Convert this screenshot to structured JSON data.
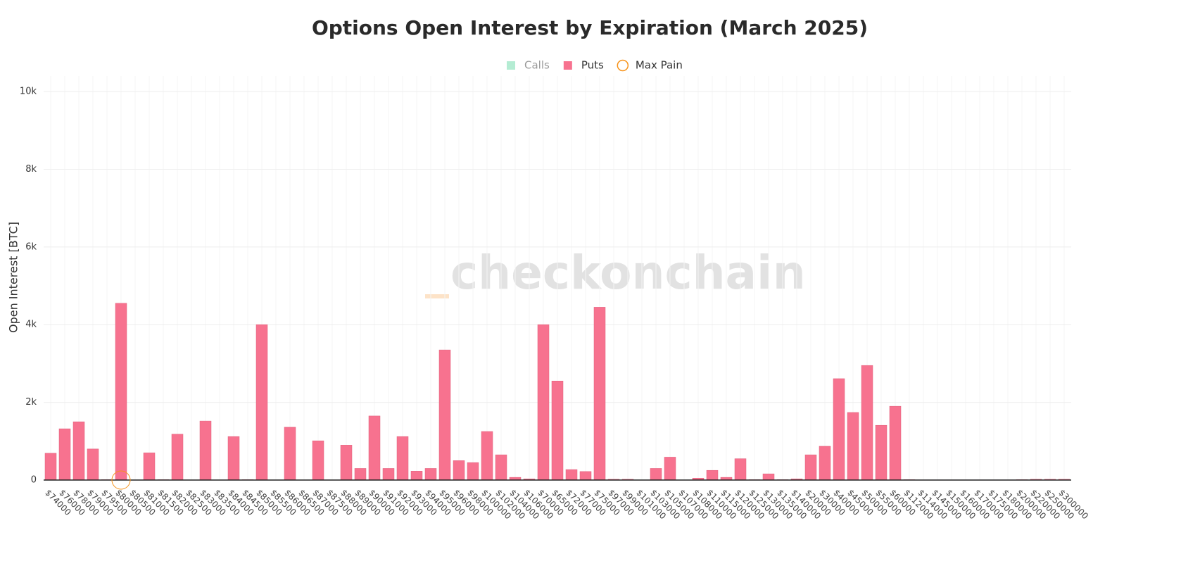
{
  "chart_data": {
    "type": "bar",
    "title": "Options Open Interest by Expiration (March 2025)",
    "y_label": "Open Interest [BTC]",
    "watermark": "checkonchain",
    "categories": [
      "$74000",
      "$76000",
      "$78000",
      "$79000",
      "$79500",
      "$80000",
      "$80500",
      "$81000",
      "$81500",
      "$82000",
      "$82500",
      "$83000",
      "$83500",
      "$84000",
      "$84500",
      "$85000",
      "$85500",
      "$86000",
      "$86500",
      "$87000",
      "$87500",
      "$88000",
      "$89000",
      "$90000",
      "$91000",
      "$92000",
      "$93000",
      "$94000",
      "$95000",
      "$96000",
      "$98000",
      "$100000",
      "$102000",
      "$104000",
      "$106000",
      "$70000",
      "$65000",
      "$72000",
      "$77000",
      "$75000",
      "$97000",
      "$99000",
      "$101000",
      "$103000",
      "$105000",
      "$107000",
      "$108000",
      "$110000",
      "$115000",
      "$120000",
      "$125000",
      "$130000",
      "$135000",
      "$140000",
      "$20000",
      "$30000",
      "$40000",
      "$45000",
      "$50000",
      "$55000",
      "$60000",
      "$112000",
      "$114000",
      "$145000",
      "$150000",
      "$160000",
      "$170000",
      "$175000",
      "$180000",
      "$200000",
      "$220000",
      "$250000",
      "$300000"
    ],
    "series": [
      {
        "name": "Calls",
        "color": "#b4ecd3",
        "visible": false
      },
      {
        "name": "Puts",
        "color": "#f7728f",
        "visible": true,
        "values": [
          690,
          1320,
          1500,
          800,
          10,
          4550,
          0,
          700,
          10,
          1180,
          0,
          1520,
          0,
          1120,
          10,
          4000,
          0,
          1360,
          0,
          1010,
          0,
          900,
          300,
          1650,
          300,
          1120,
          230,
          300,
          3350,
          500,
          450,
          1250,
          650,
          70,
          30,
          4000,
          2550,
          270,
          220,
          4450,
          20,
          20,
          0,
          300,
          590,
          0,
          50,
          250,
          70,
          550,
          10,
          160,
          10,
          30,
          650,
          870,
          2610,
          1740,
          2950,
          1410,
          1900,
          10,
          5,
          5,
          5,
          5,
          5,
          5,
          5,
          10,
          20,
          20,
          20
        ]
      }
    ],
    "max_pain": {
      "name": "Max Pain",
      "strike": "$80000",
      "color": "#f7931a"
    },
    "ylim": [
      0,
      10400
    ],
    "yticks": [
      0,
      {
        "value": 2000,
        "label": "2k"
      },
      {
        "value": 4000,
        "label": "4k"
      },
      {
        "value": 6000,
        "label": "6k"
      },
      {
        "value": 8000,
        "label": "8k"
      },
      {
        "value": 10000,
        "label": "10k"
      }
    ],
    "grid": true
  }
}
